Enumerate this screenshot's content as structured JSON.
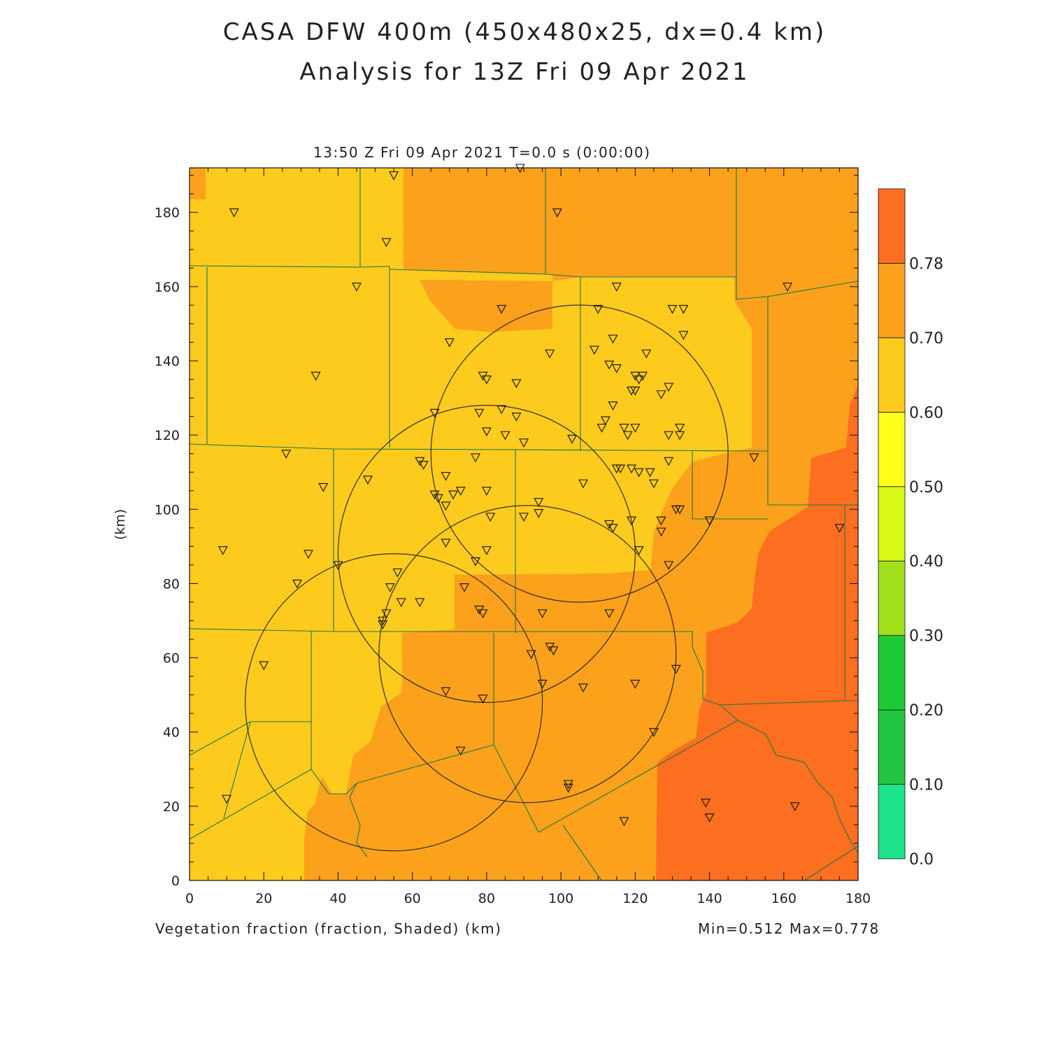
{
  "title_line1": "CASA DFW 400m (450x480x25, dx=0.4 km)",
  "title_line2": "Analysis for 13Z Fri 09 Apr 2021",
  "subtitle": "13:50 Z Fri 09 Apr 2021    T=0.0 s (0:00:00)",
  "bottom_label": "Vegetation fraction (fraction, Shaded)  (km)",
  "stats": "Min=0.512 Max=0.778",
  "y_unit_label": "(km)",
  "axes": {
    "x_ticks": [
      "0",
      "20",
      "40",
      "60",
      "80",
      "100",
      "120",
      "140",
      "160",
      "180"
    ],
    "y_ticks": [
      "0",
      "20",
      "40",
      "60",
      "80",
      "100",
      "120",
      "140",
      "160",
      "180"
    ],
    "xlim": [
      0,
      180
    ],
    "ylim": [
      0,
      192
    ]
  },
  "colorbar": {
    "labels": [
      "0.0",
      "0.10",
      "0.20",
      "0.30",
      "0.40",
      "0.50",
      "0.60",
      "0.70",
      "0.78"
    ],
    "colors": [
      "#1de38a",
      "#22c540",
      "#1ec936",
      "#a3e01c",
      "#d8f815",
      "#ffff1a",
      "#fdcb1d",
      "#fba11c",
      "#fc6e20"
    ]
  },
  "field_colors": {
    "c50_60": "#fdcb1d",
    "c60_70": "#fba11c",
    "c70_78": "#fc6e20"
  },
  "radar_rings_km": [
    {
      "cx": 105,
      "cy": 115,
      "r": 40
    },
    {
      "cx": 80,
      "cy": 88,
      "r": 40
    },
    {
      "cx": 91,
      "cy": 61,
      "r": 40
    },
    {
      "cx": 55,
      "cy": 48,
      "r": 40
    }
  ],
  "stations_km": [
    [
      12,
      180
    ],
    [
      89,
      192
    ],
    [
      55,
      190
    ],
    [
      99,
      180
    ],
    [
      53,
      172
    ],
    [
      45,
      160
    ],
    [
      115,
      160
    ],
    [
      161,
      160
    ],
    [
      84,
      154
    ],
    [
      110,
      154
    ],
    [
      130,
      154
    ],
    [
      133,
      154
    ],
    [
      133,
      147
    ],
    [
      70,
      145
    ],
    [
      114,
      146
    ],
    [
      97,
      142
    ],
    [
      109,
      143
    ],
    [
      123,
      142
    ],
    [
      34,
      136
    ],
    [
      79,
      136
    ],
    [
      80,
      135
    ],
    [
      88,
      134
    ],
    [
      113,
      139
    ],
    [
      115,
      138
    ],
    [
      120,
      136
    ],
    [
      122,
      136
    ],
    [
      121,
      135
    ],
    [
      129,
      133
    ],
    [
      127,
      131
    ],
    [
      119,
      132
    ],
    [
      120,
      132
    ],
    [
      114,
      128
    ],
    [
      66,
      126
    ],
    [
      78,
      126
    ],
    [
      84,
      127
    ],
    [
      88,
      125
    ],
    [
      112,
      124
    ],
    [
      111,
      122
    ],
    [
      117,
      122
    ],
    [
      120,
      122
    ],
    [
      118,
      120
    ],
    [
      132,
      122
    ],
    [
      132,
      120
    ],
    [
      129,
      120
    ],
    [
      80,
      121
    ],
    [
      85,
      120
    ],
    [
      90,
      118
    ],
    [
      103,
      119
    ],
    [
      26,
      115
    ],
    [
      62,
      113
    ],
    [
      63,
      112
    ],
    [
      77,
      114
    ],
    [
      69,
      109
    ],
    [
      115,
      111
    ],
    [
      116,
      111
    ],
    [
      119,
      111
    ],
    [
      121,
      110
    ],
    [
      124,
      110
    ],
    [
      129,
      113
    ],
    [
      152,
      114
    ],
    [
      48,
      108
    ],
    [
      36,
      106
    ],
    [
      66,
      104
    ],
    [
      67,
      103
    ],
    [
      71,
      104
    ],
    [
      73,
      105
    ],
    [
      80,
      105
    ],
    [
      106,
      107
    ],
    [
      125,
      107
    ],
    [
      69,
      101
    ],
    [
      94,
      102
    ],
    [
      94,
      99
    ],
    [
      90,
      98
    ],
    [
      81,
      98
    ],
    [
      113,
      96
    ],
    [
      114,
      95
    ],
    [
      119,
      97
    ],
    [
      127,
      97
    ],
    [
      127,
      94
    ],
    [
      132,
      100
    ],
    [
      131,
      100
    ],
    [
      140,
      97
    ],
    [
      175,
      95
    ],
    [
      9,
      89
    ],
    [
      32,
      88
    ],
    [
      69,
      91
    ],
    [
      80,
      89
    ],
    [
      121,
      89
    ],
    [
      77,
      86
    ],
    [
      40,
      85
    ],
    [
      29,
      80
    ],
    [
      56,
      83
    ],
    [
      54,
      79
    ],
    [
      57,
      75
    ],
    [
      62,
      75
    ],
    [
      74,
      79
    ],
    [
      78,
      73
    ],
    [
      79,
      72
    ],
    [
      53,
      72
    ],
    [
      52,
      70
    ],
    [
      52,
      69
    ],
    [
      95,
      72
    ],
    [
      113,
      72
    ],
    [
      129,
      85
    ],
    [
      97,
      63
    ],
    [
      98,
      62
    ],
    [
      92,
      61
    ],
    [
      20,
      58
    ],
    [
      131,
      57
    ],
    [
      95,
      53
    ],
    [
      106,
      52
    ],
    [
      120,
      53
    ],
    [
      69,
      51
    ],
    [
      79,
      49
    ],
    [
      125,
      40
    ],
    [
      73,
      35
    ],
    [
      10,
      22
    ],
    [
      102,
      26
    ],
    [
      102,
      25
    ],
    [
      139,
      21
    ],
    [
      140,
      17
    ],
    [
      163,
      20
    ],
    [
      117,
      16
    ]
  ]
}
